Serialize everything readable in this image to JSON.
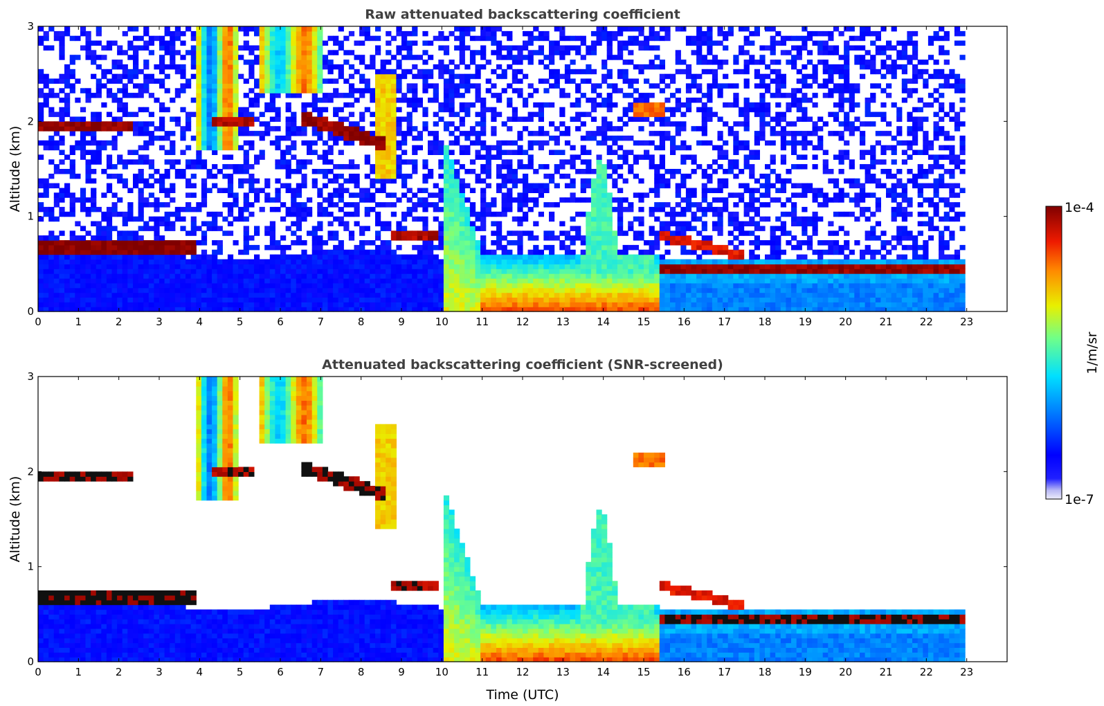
{
  "chart_data": [
    {
      "type": "heatmap",
      "title": "Raw attenuated backscattering coefficient",
      "xlabel": "",
      "ylabel": "Altitude (km)",
      "xlim": [
        0,
        24
      ],
      "ylim": [
        0,
        3
      ],
      "xticks": [
        "0",
        "1",
        "2",
        "3",
        "4",
        "5",
        "6",
        "7",
        "8",
        "9",
        "10",
        "11",
        "12",
        "13",
        "14",
        "15",
        "16",
        "17",
        "18",
        "19",
        "20",
        "21",
        "22",
        "23"
      ],
      "yticks": [
        "0",
        "1",
        "2",
        "3"
      ],
      "screened": false,
      "features": [
        {
          "name": "boundary layer aerosol (night)",
          "t_start": 0,
          "t_end": 10,
          "alt_top_km": 0.6,
          "level": "low"
        },
        {
          "name": "low cloud layer",
          "t_start": 0,
          "t_end": 3.9,
          "alt_km": 0.68,
          "level": "very high"
        },
        {
          "name": "low cloud layer",
          "t_start": 8.8,
          "t_end": 9.9,
          "alt_km": 0.79,
          "level": "very high"
        },
        {
          "name": "cloud layer ~2 km",
          "t_start": 0,
          "t_end": 2.3,
          "alt_km": 1.95,
          "level": "very high"
        },
        {
          "name": "sloping cloud layer",
          "t_start": 6.5,
          "t_end": 8.6,
          "alt_km_start": 2.05,
          "alt_km_end": 1.75,
          "level": "very high"
        },
        {
          "name": "precipitation fall streaks",
          "t_start": 3.9,
          "t_end": 8.9,
          "alt_km": [
            1.4,
            3.0
          ],
          "level": "medium"
        },
        {
          "name": "boundary layer development (day)",
          "t_start": 10,
          "t_end": 15.4,
          "alt_top_km": 0.6,
          "level": "high"
        },
        {
          "name": "convective plumes",
          "t_start": 13.5,
          "t_end": 15.2,
          "alt_km": [
            0.6,
            1.65
          ],
          "level": "medium"
        },
        {
          "name": "residual cloud layer",
          "t_start": 15.4,
          "t_end": 23,
          "alt_km": 0.45,
          "level": "very high"
        }
      ]
    },
    {
      "type": "heatmap",
      "title": "Attenuated backscattering coefficient (SNR-screened)",
      "xlabel": "Time (UTC)",
      "ylabel": "Altitude (km)",
      "xlim": [
        0,
        24
      ],
      "ylim": [
        0,
        3
      ],
      "xticks": [
        "0",
        "1",
        "2",
        "3",
        "4",
        "5",
        "6",
        "7",
        "8",
        "9",
        "10",
        "11",
        "12",
        "13",
        "14",
        "15",
        "16",
        "17",
        "18",
        "19",
        "20",
        "21",
        "22",
        "23"
      ],
      "yticks": [
        "0",
        "1",
        "2",
        "3"
      ],
      "screened": true
    }
  ],
  "colorbar": {
    "label": "1/m/sr",
    "max_label": "1e-4",
    "min_label": "1e-7",
    "scale": "log",
    "colormap": "jet",
    "colors": [
      "#e6e6fa",
      "#0000ff",
      "#0080ff",
      "#00e5ff",
      "#7fff7f",
      "#ffe600",
      "#ff5500",
      "#cc0000",
      "#800000"
    ]
  }
}
